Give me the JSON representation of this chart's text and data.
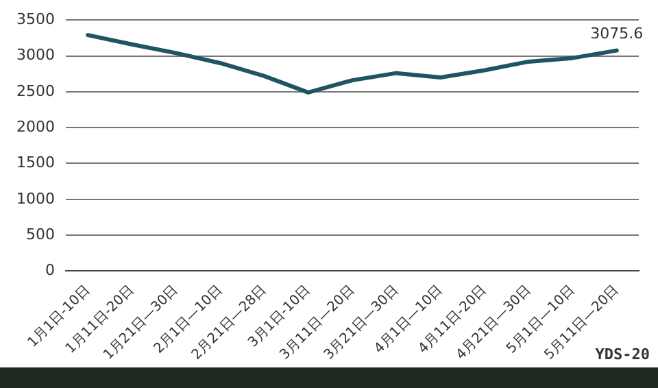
{
  "chart_data": {
    "type": "line",
    "categories": [
      "1月1日-10日",
      "1月11日-20日",
      "1月21日—30日",
      "2月1日—10日",
      "2月21日—28日",
      "3月1日-10日",
      "3月11日—20日",
      "3月21日—30日",
      "4月1日—10日",
      "4月11日-20日",
      "4月21日—30日",
      "5月1日—10日",
      "5月11日—20日"
    ],
    "series": [
      {
        "color": "#1d5563",
        "values": [
          3290,
          3160,
          3040,
          2900,
          2720,
          2490,
          2660,
          2760,
          2700,
          2800,
          2920,
          2970,
          3075.6
        ],
        "value_labels": [
          null,
          null,
          null,
          null,
          null,
          null,
          null,
          null,
          null,
          null,
          null,
          null,
          "3075.6"
        ]
      }
    ],
    "ylim": [
      0,
      3500
    ],
    "yticks": [
      0,
      500,
      1000,
      1500,
      2000,
      2500,
      3000,
      3500
    ],
    "grid": "y",
    "legend": false,
    "marker": "none",
    "line_style": "solid",
    "annotations": [
      "YDS-20"
    ]
  }
}
